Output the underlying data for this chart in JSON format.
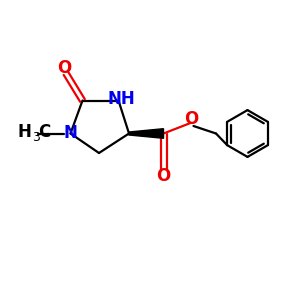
{
  "background_color": "#ffffff",
  "bond_color": "#000000",
  "N_color": "#0000ee",
  "O_color": "#ee0000",
  "line_width": 1.6,
  "font_size": 10,
  "fig_size": [
    3.0,
    3.0
  ],
  "dpi": 100,
  "xlim": [
    0,
    10
  ],
  "ylim": [
    0,
    10
  ]
}
